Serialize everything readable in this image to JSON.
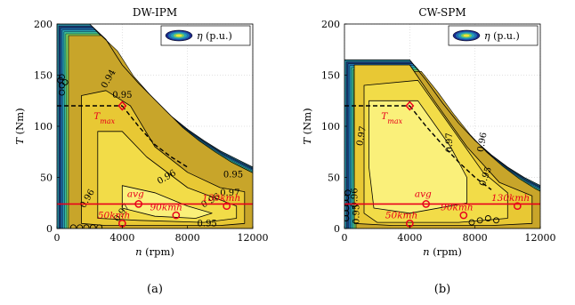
{
  "chart_data": [
    {
      "type": "heatmap",
      "title": "DW-IPM",
      "xlabel_italic": "n",
      "xlabel_rest": "(rpm)",
      "ylabel_italic": "T",
      "ylabel_rest": "(Nm)",
      "xlim": [
        0,
        12000
      ],
      "ylim": [
        0,
        200
      ],
      "xticks": [
        0,
        4000,
        8000,
        12000
      ],
      "yticks": [
        0,
        50,
        100,
        150,
        200
      ],
      "legend_italic": "η",
      "legend_rest": "(p.u.)",
      "legend_position": "top-right",
      "grid": true,
      "caption": "(a)",
      "envelope": [
        [
          0,
          200
        ],
        [
          2000,
          200
        ],
        [
          3000,
          185
        ],
        [
          4000,
          160
        ],
        [
          5000,
          142
        ],
        [
          6000,
          126
        ],
        [
          7000,
          110
        ],
        [
          8000,
          97
        ],
        [
          9000,
          86
        ],
        [
          10000,
          76
        ],
        [
          11000,
          68
        ],
        [
          12000,
          60
        ]
      ],
      "cycle_points": [
        [
          300,
          148
        ],
        [
          300,
          140
        ],
        [
          300,
          133
        ],
        [
          500,
          143
        ],
        [
          200,
          145
        ],
        [
          1000,
          1
        ],
        [
          1400,
          1
        ],
        [
          1800,
          1
        ],
        [
          2200,
          1
        ],
        [
          2600,
          1
        ]
      ],
      "regions": [
        {
          "level": 0.95,
          "boundary": [
            [
              1500,
              130
            ],
            [
              3000,
              135
            ],
            [
              4500,
              120
            ],
            [
              6000,
              80
            ],
            [
              8000,
              55
            ],
            [
              10000,
              40
            ],
            [
              11500,
              36
            ],
            [
              11500,
              5
            ],
            [
              10000,
              3
            ],
            [
              3000,
              3
            ],
            [
              1500,
              5
            ]
          ]
        },
        {
          "level": 0.96,
          "boundary": [
            [
              2500,
              95
            ],
            [
              4000,
              95
            ],
            [
              5500,
              70
            ],
            [
              8000,
              40
            ],
            [
              10000,
              28
            ],
            [
              11000,
              22
            ],
            [
              11000,
              10
            ],
            [
              9000,
              6
            ],
            [
              5000,
              8
            ],
            [
              2500,
              10
            ]
          ]
        },
        {
          "level": 0.97,
          "boundary": [
            [
              4000,
              42
            ],
            [
              6000,
              35
            ],
            [
              8000,
              22
            ],
            [
              9500,
              15
            ],
            [
              8500,
              10
            ],
            [
              6000,
              12
            ],
            [
              4000,
              20
            ]
          ]
        }
      ],
      "contour_labels": [
        {
          "text": "0.94",
          "x": 3300,
          "y": 145,
          "rot": -60
        },
        {
          "text": "0.95",
          "x": 4000,
          "y": 128,
          "rot": 0
        },
        {
          "text": "0.96",
          "x": 6800,
          "y": 48,
          "rot": -30
        },
        {
          "text": "0.96",
          "x": 2000,
          "y": 28,
          "rot": -60
        },
        {
          "text": "0.97",
          "x": 4100,
          "y": 14,
          "rot": -55
        },
        {
          "text": "0.96",
          "x": 9500,
          "y": 25,
          "rot": -30
        },
        {
          "text": "0.95",
          "x": 10800,
          "y": 50,
          "rot": 0
        },
        {
          "text": "0.97",
          "x": 10600,
          "y": 32,
          "rot": 0
        },
        {
          "text": "0.95",
          "x": 9200,
          "y": 2,
          "rot": 0
        }
      ],
      "tmax_line": {
        "y": 120,
        "x_end": 4000
      },
      "base_speed_curve": [
        [
          4000,
          120
        ],
        [
          5000,
          100
        ],
        [
          6000,
          82
        ],
        [
          7000,
          70
        ],
        [
          8000,
          60
        ]
      ],
      "avg_line_y": 24,
      "operating_points": [
        {
          "label": "T",
          "label_sub": "max",
          "x": 4000,
          "y": 120,
          "marker": "diamond",
          "lx": 2250,
          "ly": 107
        },
        {
          "label": "avg",
          "x": 5000,
          "y": 24,
          "marker": "circle",
          "lx": 4300,
          "ly": 31
        },
        {
          "label": "130kmh",
          "x": 10400,
          "y": 22,
          "marker": "circle",
          "lx": 8900,
          "ly": 27
        },
        {
          "label": "90kmh",
          "x": 7300,
          "y": 13,
          "marker": "circle",
          "lx": 5700,
          "ly": 18
        },
        {
          "label": "50kmh",
          "x": 4000,
          "y": 5,
          "marker": "circle",
          "lx": 2500,
          "ly": 10
        }
      ]
    },
    {
      "type": "heatmap",
      "title": "CW-SPM",
      "xlabel_italic": "n",
      "xlabel_rest": "(rpm)",
      "ylabel_italic": "T",
      "ylabel_rest": "(Nm)",
      "xlim": [
        0,
        12000
      ],
      "ylim": [
        0,
        200
      ],
      "xticks": [
        0,
        4000,
        8000,
        12000
      ],
      "yticks": [
        0,
        50,
        100,
        150,
        200
      ],
      "legend_italic": "η",
      "legend_rest": "(p.u.)",
      "legend_position": "top-right",
      "grid": true,
      "caption": "(b)",
      "envelope": [
        [
          0,
          165
        ],
        [
          4000,
          165
        ],
        [
          5000,
          145
        ],
        [
          6000,
          123
        ],
        [
          7000,
          103
        ],
        [
          8000,
          86
        ],
        [
          9000,
          72
        ],
        [
          10000,
          60
        ],
        [
          11000,
          50
        ],
        [
          12000,
          42
        ]
      ],
      "cycle_points": [
        [
          100,
          30
        ],
        [
          100,
          25
        ],
        [
          100,
          20
        ],
        [
          100,
          15
        ],
        [
          100,
          10
        ],
        [
          200,
          35
        ],
        [
          7800,
          6
        ],
        [
          8300,
          8
        ],
        [
          8800,
          10
        ],
        [
          9300,
          8
        ]
      ],
      "regions": [
        {
          "level": 0.95,
          "boundary": [
            [
              600,
              160
            ],
            [
              4000,
              160
            ],
            [
              5500,
              125
            ],
            [
              7500,
              80
            ],
            [
              9500,
              45
            ],
            [
              11500,
              32
            ],
            [
              11500,
              5
            ],
            [
              9000,
              3
            ],
            [
              3000,
              3
            ],
            [
              600,
              5
            ]
          ]
        },
        {
          "level": 0.96,
          "boundary": [
            [
              1200,
              140
            ],
            [
              4500,
              145
            ],
            [
              6500,
              100
            ],
            [
              8500,
              55
            ],
            [
              10000,
              35
            ],
            [
              10000,
              10
            ],
            [
              7000,
              6
            ],
            [
              2000,
              6
            ],
            [
              1200,
              15
            ]
          ]
        },
        {
          "level": 0.97,
          "boundary": [
            [
              1500,
              125
            ],
            [
              4500,
              125
            ],
            [
              6500,
              80
            ],
            [
              7500,
              50
            ],
            [
              7500,
              25
            ],
            [
              4000,
              15
            ],
            [
              1800,
              20
            ],
            [
              1500,
              60
            ]
          ]
        }
      ],
      "contour_labels": [
        {
          "text": "0.97",
          "x": 1200,
          "y": 90,
          "rot": -80
        },
        {
          "text": "0.97",
          "x": 6600,
          "y": 84,
          "rot": -90
        },
        {
          "text": "0.96",
          "x": 8600,
          "y": 84,
          "rot": -80
        },
        {
          "text": "0.95",
          "x": 8800,
          "y": 50,
          "rot": -70
        },
        {
          "text": "0.96",
          "x": 800,
          "y": 30,
          "rot": -90
        },
        {
          "text": "0.95",
          "x": 900,
          "y": 14,
          "rot": -90
        }
      ],
      "tmax_line": {
        "y": 120,
        "x_end": 4000
      },
      "base_speed_curve": [
        [
          4000,
          120
        ],
        [
          5000,
          100
        ],
        [
          6000,
          82
        ],
        [
          7000,
          65
        ],
        [
          8000,
          50
        ],
        [
          9000,
          38
        ]
      ],
      "avg_line_y": 24,
      "operating_points": [
        {
          "label": "T",
          "label_sub": "max",
          "x": 4000,
          "y": 120,
          "marker": "diamond",
          "lx": 2250,
          "ly": 107
        },
        {
          "label": "avg",
          "x": 5000,
          "y": 24,
          "marker": "circle",
          "lx": 4300,
          "ly": 31
        },
        {
          "label": "130kmh",
          "x": 10600,
          "y": 22,
          "marker": "circle",
          "lx": 9000,
          "ly": 27
        },
        {
          "label": "90kmh",
          "x": 7300,
          "y": 13,
          "marker": "circle",
          "lx": 5900,
          "ly": 18
        },
        {
          "label": "50kmh",
          "x": 4000,
          "y": 5,
          "marker": "circle",
          "lx": 2500,
          "ly": 10
        }
      ]
    }
  ],
  "colors": {
    "fill_low": "#2a8fa6",
    "fill_095": "#e8c834",
    "fill_096": "#f2dc48",
    "fill_097": "#faf07a",
    "fill_base": "#c8a52a",
    "edge_bands": [
      "#1a3d7a",
      "#1f6fb0",
      "#27a0b8",
      "#3bbf9a",
      "#7ccd5b"
    ],
    "annotation": "#e8001c",
    "grid": "#d6d6d6"
  }
}
